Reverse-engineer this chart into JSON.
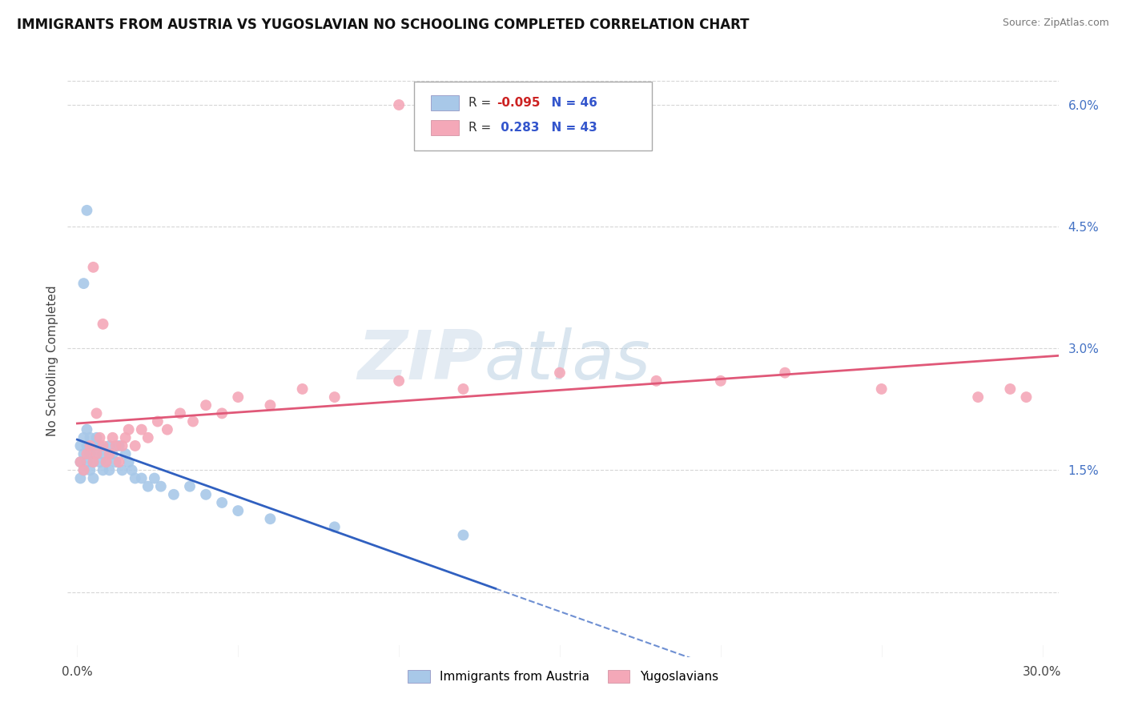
{
  "title": "IMMIGRANTS FROM AUSTRIA VS YUGOSLAVIAN NO SCHOOLING COMPLETED CORRELATION CHART",
  "source": "Source: ZipAtlas.com",
  "ylabel": "No Schooling Completed",
  "xlim": [
    -0.003,
    0.305
  ],
  "ylim": [
    -0.008,
    0.065
  ],
  "xticks": [
    0.0,
    0.05,
    0.1,
    0.15,
    0.2,
    0.25,
    0.3
  ],
  "xticklabels": [
    "0.0%",
    "",
    "",
    "",
    "",
    "",
    "30.0%"
  ],
  "right_yticks": [
    0.0,
    0.015,
    0.03,
    0.045,
    0.06
  ],
  "right_yticklabels": [
    "",
    "1.5%",
    "3.0%",
    "4.5%",
    "6.0%"
  ],
  "blue_color": "#a8c8e8",
  "pink_color": "#f4a8b8",
  "blue_line_color": "#3060c0",
  "pink_line_color": "#e05878",
  "legend_blue_label": "Immigrants from Austria",
  "legend_pink_label": "Yugoslavians",
  "R_blue": -0.095,
  "N_blue": 46,
  "R_pink": 0.283,
  "N_pink": 43,
  "blue_x": [
    0.001,
    0.001,
    0.001,
    0.002,
    0.002,
    0.002,
    0.003,
    0.003,
    0.003,
    0.004,
    0.004,
    0.004,
    0.005,
    0.005,
    0.005,
    0.006,
    0.006,
    0.007,
    0.007,
    0.008,
    0.008,
    0.009,
    0.01,
    0.01,
    0.011,
    0.012,
    0.013,
    0.014,
    0.015,
    0.016,
    0.017,
    0.018,
    0.02,
    0.022,
    0.024,
    0.026,
    0.03,
    0.035,
    0.04,
    0.045,
    0.05,
    0.06,
    0.08,
    0.12,
    0.003,
    0.002
  ],
  "blue_y": [
    0.016,
    0.018,
    0.014,
    0.017,
    0.019,
    0.015,
    0.016,
    0.02,
    0.018,
    0.017,
    0.015,
    0.019,
    0.016,
    0.018,
    0.014,
    0.017,
    0.019,
    0.016,
    0.018,
    0.015,
    0.017,
    0.016,
    0.018,
    0.015,
    0.017,
    0.016,
    0.018,
    0.015,
    0.017,
    0.016,
    0.015,
    0.014,
    0.014,
    0.013,
    0.014,
    0.013,
    0.012,
    0.013,
    0.012,
    0.011,
    0.01,
    0.009,
    0.008,
    0.007,
    0.047,
    0.038
  ],
  "pink_x": [
    0.001,
    0.002,
    0.003,
    0.004,
    0.005,
    0.006,
    0.007,
    0.008,
    0.009,
    0.01,
    0.011,
    0.012,
    0.013,
    0.014,
    0.015,
    0.016,
    0.018,
    0.02,
    0.022,
    0.025,
    0.028,
    0.032,
    0.036,
    0.04,
    0.045,
    0.05,
    0.06,
    0.07,
    0.08,
    0.1,
    0.12,
    0.15,
    0.18,
    0.2,
    0.22,
    0.25,
    0.28,
    0.29,
    0.295,
    0.005,
    0.008,
    0.1,
    0.006
  ],
  "pink_y": [
    0.016,
    0.015,
    0.017,
    0.018,
    0.016,
    0.017,
    0.019,
    0.018,
    0.016,
    0.017,
    0.019,
    0.018,
    0.016,
    0.018,
    0.019,
    0.02,
    0.018,
    0.02,
    0.019,
    0.021,
    0.02,
    0.022,
    0.021,
    0.023,
    0.022,
    0.024,
    0.023,
    0.025,
    0.024,
    0.026,
    0.025,
    0.027,
    0.026,
    0.026,
    0.027,
    0.025,
    0.024,
    0.025,
    0.024,
    0.04,
    0.033,
    0.06,
    0.022
  ],
  "watermark_zip": "ZIP",
  "watermark_atlas": "atlas",
  "background_color": "#ffffff",
  "grid_color": "#cccccc",
  "title_fontsize": 12,
  "tick_fontsize": 11,
  "axis_label_fontsize": 11
}
